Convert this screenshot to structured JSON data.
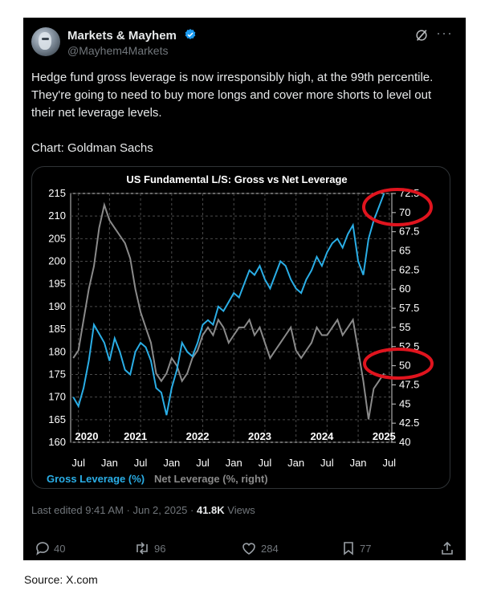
{
  "author": {
    "name": "Markets & Mayhem",
    "handle": "@Mayhem4Markets"
  },
  "tweet_text": "Hedge fund gross leverage is now irresponsibly high, at the 99th percentile. They're going to need to buy more longs and cover more shorts to level out their net leverage levels.\n\nChart: Goldman Sachs",
  "meta": {
    "edited": "Last edited 9:41 AM · Jun 2, 2025 · ",
    "views_count": "41.8K",
    "views_label": " Views"
  },
  "actions": {
    "replies": "40",
    "reposts": "96",
    "likes": "284",
    "bookmarks": "77"
  },
  "source": "Source: X.com",
  "icons": [
    "verified-badge-icon",
    "grok-icon",
    "more-icon",
    "reply-icon",
    "repost-icon",
    "like-icon",
    "bookmark-icon",
    "share-icon"
  ],
  "colors": {
    "gross": "#2aaee6",
    "net": "#8a8a8a",
    "annotation": "#e0141e",
    "verified": "#1d9bf0"
  },
  "chart_data": {
    "type": "line",
    "title": "US Fundamental L/S: Gross vs Net Leverage",
    "left_ticks": [
      "215",
      "210",
      "205",
      "200",
      "195",
      "190",
      "185",
      "180",
      "175",
      "170",
      "165",
      "160"
    ],
    "right_ticks": [
      "72.5",
      "70",
      "67.5",
      "65",
      "62.5",
      "60",
      "57.5",
      "55",
      "52.5",
      "50",
      "47.5",
      "45",
      "42.5",
      "40"
    ],
    "year_labels": [
      "2020",
      "2021",
      "2022",
      "2023",
      "2024",
      "2025"
    ],
    "month_ticks": [
      "Jul",
      "Jan",
      "Jul",
      "Jan",
      "Jul",
      "Jan",
      "Jul",
      "Jan",
      "Jul",
      "Jan",
      "Jul"
    ],
    "ylim_left": [
      160,
      215
    ],
    "ylim_right": [
      40,
      72.5
    ],
    "grid": true,
    "legend_position": "bottom-left",
    "series": [
      {
        "name": "Gross Leverage (%)",
        "axis": "left",
        "x": [
          0,
          1,
          2,
          3,
          4,
          5,
          6,
          7,
          8,
          9,
          10,
          11,
          12,
          13,
          14,
          15,
          16,
          17,
          18,
          19,
          20,
          21,
          22,
          23,
          24,
          25,
          26,
          27,
          28,
          29,
          30,
          31,
          32,
          33,
          34,
          35,
          36,
          37,
          38,
          39,
          40,
          41,
          42,
          43,
          44,
          45,
          46,
          47,
          48,
          49,
          50,
          51,
          52,
          53,
          54,
          55,
          56,
          57,
          58,
          59,
          60
        ],
        "x_label": "month index from Jun 2020",
        "values": [
          170,
          168,
          172,
          178,
          186,
          184,
          182,
          178,
          183,
          180,
          176,
          175,
          180,
          182,
          181,
          178,
          172,
          171,
          166,
          172,
          176,
          182,
          180,
          179,
          182,
          186,
          187,
          186,
          190,
          189,
          191,
          193,
          192,
          195,
          198,
          197,
          199,
          196,
          194,
          197,
          200,
          199,
          196,
          194,
          193,
          196,
          198,
          201,
          199,
          202,
          204,
          205,
          203,
          206,
          208,
          200,
          197,
          205,
          209,
          212,
          215
        ]
      },
      {
        "name": "Net Leverage (%, right)",
        "axis": "right",
        "x": [
          0,
          1,
          2,
          3,
          4,
          5,
          6,
          7,
          8,
          9,
          10,
          11,
          12,
          13,
          14,
          15,
          16,
          17,
          18,
          19,
          20,
          21,
          22,
          23,
          24,
          25,
          26,
          27,
          28,
          29,
          30,
          31,
          32,
          33,
          34,
          35,
          36,
          37,
          38,
          39,
          40,
          41,
          42,
          43,
          44,
          45,
          46,
          47,
          48,
          49,
          50,
          51,
          52,
          53,
          54,
          55,
          56,
          57,
          58,
          59,
          60
        ],
        "x_label": "month index from Jun 2020",
        "values": [
          51,
          52,
          56,
          60,
          63,
          68,
          71,
          69,
          68,
          67,
          66,
          64,
          60,
          57,
          55,
          53,
          49,
          48,
          49,
          51,
          50,
          48,
          49,
          51,
          52,
          54,
          55,
          54,
          56,
          55,
          53,
          54,
          55,
          55,
          56,
          54,
          55,
          53,
          51,
          52,
          53,
          54,
          55,
          52,
          51,
          52,
          53,
          55,
          54,
          54,
          55,
          56,
          54,
          55,
          56,
          52,
          48,
          43,
          47,
          48,
          49
        ]
      }
    ]
  }
}
